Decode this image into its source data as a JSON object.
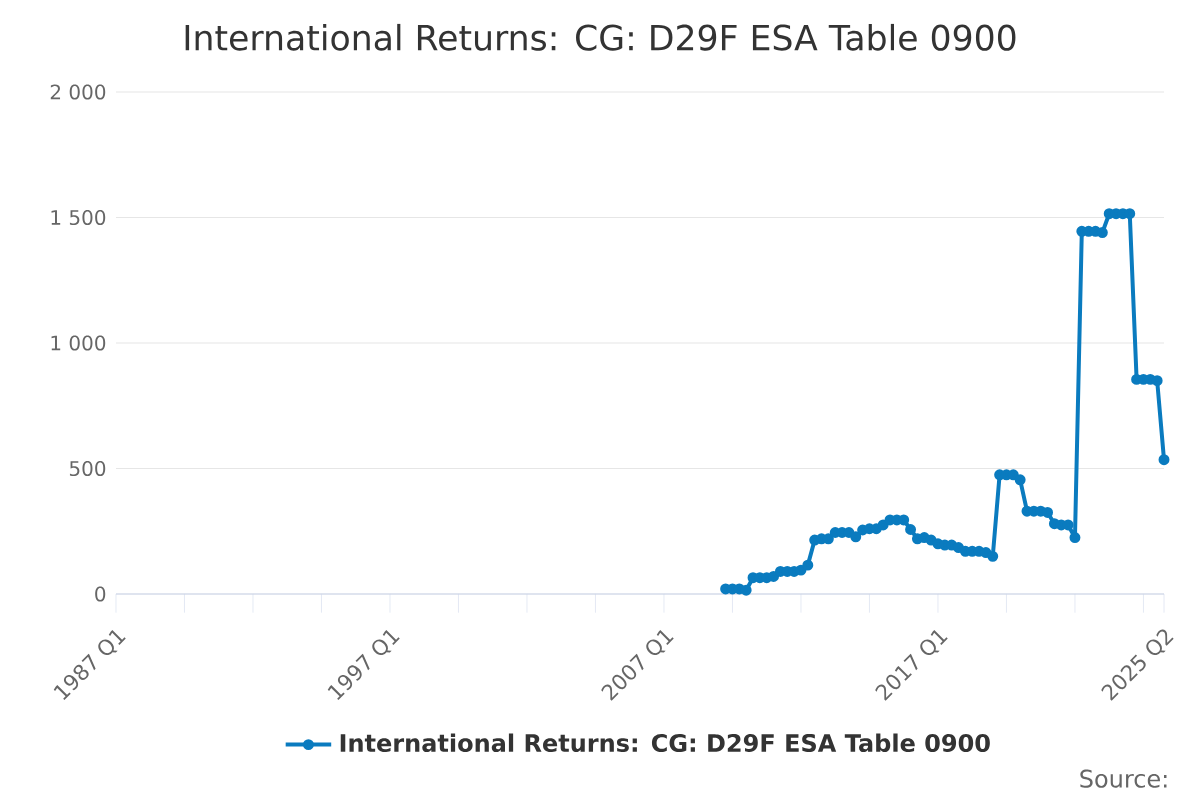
{
  "chart_data": {
    "type": "line",
    "title": "International Returns: CG: D29F ESA Table 0900",
    "categories": [
      "1987 Q1",
      null,
      null,
      null,
      null,
      null,
      null,
      null,
      null,
      null,
      null,
      null,
      null,
      null,
      null,
      null,
      null,
      null,
      null,
      null,
      null,
      null,
      null,
      null,
      null,
      null,
      null,
      null,
      null,
      null,
      null,
      null,
      null,
      null,
      null,
      null,
      null,
      null,
      null,
      null,
      "1997 Q1",
      null,
      null,
      null,
      null,
      null,
      null,
      null,
      null,
      null,
      null,
      null,
      null,
      null,
      null,
      null,
      null,
      null,
      null,
      null,
      null,
      null,
      null,
      null,
      null,
      null,
      null,
      null,
      null,
      null,
      null,
      null,
      null,
      null,
      null,
      null,
      null,
      null,
      null,
      null,
      "2007 Q1",
      null,
      null,
      null,
      null,
      null,
      null,
      null,
      null,
      null,
      null,
      null,
      null,
      null,
      null,
      null,
      null,
      null,
      null,
      null,
      null,
      null,
      null,
      null,
      null,
      null,
      null,
      null,
      null,
      null,
      null,
      null,
      null,
      null,
      null,
      null,
      null,
      null,
      null,
      null,
      "2017 Q1",
      null,
      null,
      null,
      null,
      null,
      null,
      null,
      null,
      null,
      null,
      null,
      null,
      null,
      null,
      null,
      null,
      null,
      null,
      null,
      null,
      null,
      null,
      null,
      null,
      null,
      null,
      null,
      null,
      null,
      null,
      null,
      null,
      "2025 Q2"
    ],
    "series": [
      {
        "name": "International Returns: CG: D29F ESA Table 0900",
        "color": "#0a7bbf",
        "values": [
          null,
          null,
          null,
          null,
          null,
          null,
          null,
          null,
          null,
          null,
          null,
          null,
          null,
          null,
          null,
          null,
          null,
          null,
          null,
          null,
          null,
          null,
          null,
          null,
          null,
          null,
          null,
          null,
          null,
          null,
          null,
          null,
          null,
          null,
          null,
          null,
          null,
          null,
          null,
          null,
          null,
          null,
          null,
          null,
          null,
          null,
          null,
          null,
          null,
          null,
          null,
          null,
          null,
          null,
          null,
          null,
          null,
          null,
          null,
          null,
          null,
          null,
          null,
          null,
          null,
          null,
          null,
          null,
          null,
          null,
          null,
          null,
          null,
          null,
          null,
          null,
          null,
          null,
          null,
          null,
          null,
          null,
          null,
          null,
          null,
          null,
          null,
          null,
          null,
          20,
          20,
          20,
          15,
          65,
          65,
          65,
          70,
          90,
          90,
          90,
          95,
          115,
          215,
          220,
          220,
          245,
          245,
          245,
          228,
          255,
          260,
          260,
          275,
          295,
          295,
          295,
          257,
          220,
          225,
          215,
          200,
          195,
          195,
          185,
          170,
          170,
          170,
          165,
          150,
          475,
          475,
          475,
          455,
          330,
          330,
          330,
          325,
          280,
          275,
          275,
          225,
          1445,
          1445,
          1445,
          1440,
          1515,
          1515,
          1515,
          1515,
          855,
          855,
          855,
          850,
          535
        ]
      }
    ],
    "ylim": [
      0,
      2000
    ],
    "yticks": [
      0,
      500,
      {
        "value": 1000,
        "label": "1 000"
      },
      {
        "value": 1500,
        "label": "1 500"
      },
      {
        "value": 2000,
        "label": "2 000"
      }
    ],
    "grid": "y",
    "legend": "bottom",
    "marker": "circle",
    "line_style": "solid",
    "annotations": [
      "Source:"
    ]
  }
}
